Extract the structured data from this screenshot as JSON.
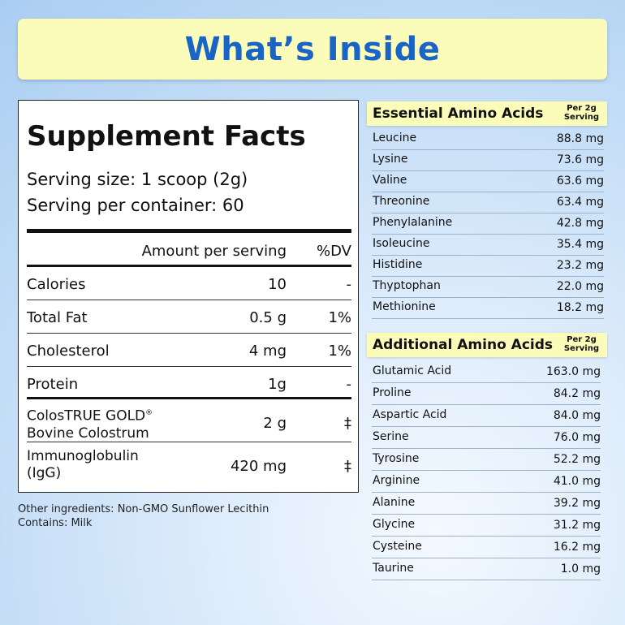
{
  "banner": {
    "title": "What’s Inside"
  },
  "facts": {
    "title": "Supplement Facts",
    "serving_size": "Serving size: 1 scoop (2g)",
    "servings_per_container": "Serving per container: 60",
    "col_amount": "Amount per serving",
    "col_dv": "%DV",
    "rows": [
      {
        "label": "Calories",
        "amount": "10",
        "dv": "-"
      },
      {
        "label": "Total Fat",
        "amount": "0.5 g",
        "dv": "1%"
      },
      {
        "label": "Cholesterol",
        "amount": "4 mg",
        "dv": "1%"
      },
      {
        "label": "Protein",
        "amount": "1g",
        "dv": "-"
      },
      {
        "label": "ColosTRUE GOLD",
        "label_mark": "®",
        "label2": "Bovine Colostrum",
        "amount": "2 g",
        "dv": "‡"
      },
      {
        "label": "Immunoglobulin",
        "label2": "(IgG)",
        "amount": "420 mg",
        "dv": "‡"
      }
    ],
    "other_ingredients": "Other ingredients: Non-GMO Sunflower Lecithin",
    "contains": "Contains: Milk"
  },
  "essential": {
    "title": "Essential Amino Acids",
    "per_line1": "Per 2g",
    "per_line2": "Serving",
    "items": [
      {
        "name": "Leucine",
        "value": "88.8 mg"
      },
      {
        "name": "Lysine",
        "value": "73.6 mg"
      },
      {
        "name": "Valine",
        "value": "63.6 mg"
      },
      {
        "name": "Threonine",
        "value": "63.4 mg"
      },
      {
        "name": "Phenylalanine",
        "value": "42.8 mg"
      },
      {
        "name": "Isoleucine",
        "value": "35.4 mg"
      },
      {
        "name": "Histidine",
        "value": "23.2 mg"
      },
      {
        "name": "Thyptophan",
        "value": "22.0 mg"
      },
      {
        "name": "Methionine",
        "value": "18.2 mg"
      }
    ]
  },
  "additional": {
    "title": "Additional Amino Acids",
    "per_line1": "Per 2g",
    "per_line2": "Serving",
    "items": [
      {
        "name": "Glutamic Acid",
        "value": "163.0 mg"
      },
      {
        "name": "Proline",
        "value": "84.2 mg"
      },
      {
        "name": "Aspartic Acid",
        "value": "84.0 mg"
      },
      {
        "name": "Serine",
        "value": "76.0 mg"
      },
      {
        "name": "Tyrosine",
        "value": "52.2 mg"
      },
      {
        "name": "Arginine",
        "value": "41.0 mg"
      },
      {
        "name": "Alanine",
        "value": "39.2 mg"
      },
      {
        "name": "Glycine",
        "value": "31.2 mg"
      },
      {
        "name": "Cysteine",
        "value": "16.2 mg"
      },
      {
        "name": "Taurine",
        "value": "1.0 mg"
      }
    ]
  }
}
